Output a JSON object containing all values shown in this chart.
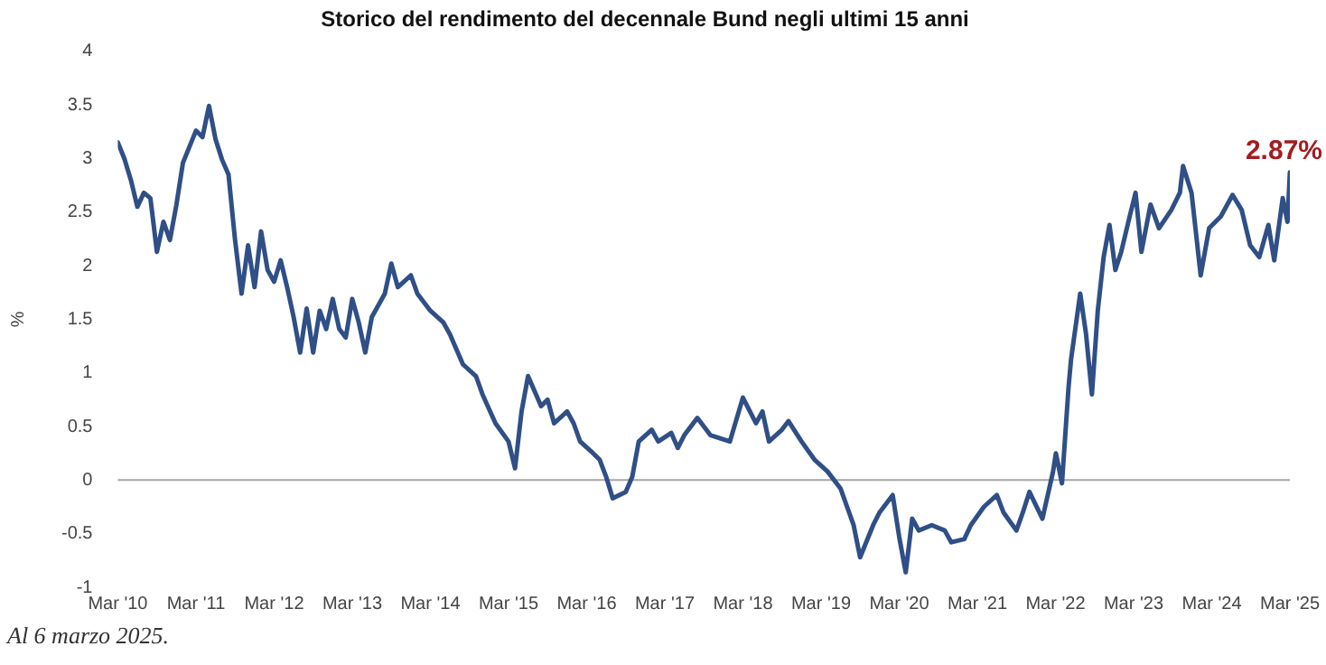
{
  "chart_data": {
    "type": "line",
    "title": "Storico del rendimento del decennale Bund negli ultimi 15 anni",
    "ylabel": "%",
    "x": [
      "2010-03",
      "2010-04",
      "2010-05",
      "2010-06",
      "2010-07",
      "2010-08",
      "2010-09",
      "2010-10",
      "2010-11",
      "2010-12",
      "2011-01",
      "2011-03",
      "2011-04",
      "2011-05",
      "2011-06",
      "2011-07",
      "2011-08",
      "2011-09",
      "2011-10",
      "2011-11",
      "2011-12",
      "2012-01",
      "2012-02",
      "2012-03",
      "2012-04",
      "2012-05",
      "2012-06",
      "2012-07",
      "2012-08",
      "2012-09",
      "2012-10",
      "2012-11",
      "2012-12",
      "2013-01",
      "2013-02",
      "2013-03",
      "2013-04",
      "2013-05",
      "2013-06",
      "2013-08",
      "2013-09",
      "2013-10",
      "2013-12",
      "2014-01",
      "2014-03",
      "2014-05",
      "2014-06",
      "2014-08",
      "2014-10",
      "2014-11",
      "2015-01",
      "2015-03",
      "2015-04",
      "2015-05",
      "2015-06",
      "2015-08",
      "2015-09",
      "2015-10",
      "2015-12",
      "2016-01",
      "2016-02",
      "2016-04",
      "2016-05",
      "2016-06",
      "2016-07",
      "2016-09",
      "2016-10",
      "2016-11",
      "2017-01",
      "2017-02",
      "2017-04",
      "2017-05",
      "2017-06",
      "2017-08",
      "2017-10",
      "2018-01",
      "2018-03",
      "2018-05",
      "2018-06",
      "2018-07",
      "2018-09",
      "2018-10",
      "2018-12",
      "2019-02",
      "2019-04",
      "2019-06",
      "2019-07",
      "2019-08",
      "2019-09",
      "2019-11",
      "2019-12",
      "2020-02",
      "2020-03",
      "2020-04",
      "2020-05",
      "2020-06",
      "2020-08",
      "2020-10",
      "2020-11",
      "2021-01",
      "2021-02",
      "2021-04",
      "2021-06",
      "2021-07",
      "2021-09",
      "2021-10",
      "2021-11",
      "2022-01",
      "2022-02-20",
      "2022-03-03",
      "2022-04-01",
      "2022-05-01",
      "2022-05-13",
      "2022-06-25",
      "2022-07-22",
      "2022-08-19",
      "2022-09-16",
      "2022-10-13",
      "2022-11-10",
      "2022-12-07",
      "2023-01-04",
      "2023-02-13",
      "2023-03-10",
      "2023-04-07",
      "2023-05-19",
      "2023-06-28",
      "2023-08-25",
      "2023-10-04",
      "2023-10-19",
      "2023-11-28",
      "2024-01-10",
      "2024-02-19",
      "2024-04-13",
      "2024-06-07",
      "2024-07-19",
      "2024-08-28",
      "2024-10-10",
      "2024-11-22",
      "2024-12-19",
      "2025-01-28",
      "2025-02-20",
      "2025-03"
    ],
    "series": [
      {
        "color": "#2f4f86",
        "values": [
          3.15,
          3.0,
          2.8,
          2.55,
          2.68,
          2.63,
          2.13,
          2.41,
          2.24,
          2.57,
          2.96,
          3.26,
          3.2,
          3.49,
          3.18,
          2.99,
          2.85,
          2.24,
          1.74,
          2.19,
          1.8,
          2.32,
          1.96,
          1.85,
          2.05,
          1.8,
          1.52,
          1.19,
          1.6,
          1.19,
          1.58,
          1.41,
          1.69,
          1.41,
          1.33,
          1.69,
          1.47,
          1.19,
          1.52,
          1.74,
          2.02,
          1.8,
          1.91,
          1.74,
          1.58,
          1.47,
          1.36,
          1.08,
          0.97,
          0.8,
          0.53,
          0.36,
          0.11,
          0.64,
          0.97,
          0.69,
          0.75,
          0.53,
          0.64,
          0.53,
          0.36,
          0.25,
          0.19,
          0.03,
          -0.17,
          -0.11,
          0.03,
          0.36,
          0.47,
          0.36,
          0.44,
          0.3,
          0.42,
          0.58,
          0.42,
          0.36,
          0.77,
          0.53,
          0.64,
          0.36,
          0.47,
          0.55,
          0.36,
          0.19,
          0.08,
          -0.08,
          -0.25,
          -0.42,
          -0.72,
          -0.42,
          -0.3,
          -0.14,
          -0.53,
          -0.86,
          -0.36,
          -0.47,
          -0.42,
          -0.47,
          -0.58,
          -0.55,
          -0.42,
          -0.25,
          -0.14,
          -0.3,
          -0.47,
          -0.3,
          -0.11,
          -0.36,
          0.08,
          0.25,
          -0.03,
          0.86,
          1.13,
          1.74,
          1.36,
          0.8,
          1.58,
          2.08,
          2.38,
          1.96,
          2.13,
          2.46,
          2.68,
          2.13,
          2.57,
          2.35,
          2.52,
          2.68,
          2.93,
          2.68,
          1.91,
          2.35,
          2.46,
          2.66,
          2.52,
          2.19,
          2.08,
          2.38,
          2.05,
          2.63,
          2.41,
          2.87
        ]
      }
    ],
    "xlim": [
      "2010-03",
      "2025-03"
    ],
    "xticks": [
      {
        "value": "2010-03",
        "label": "Mar '10"
      },
      {
        "value": "2011-03",
        "label": "Mar '11"
      },
      {
        "value": "2012-03",
        "label": "Mar '12"
      },
      {
        "value": "2013-03",
        "label": "Mar '13"
      },
      {
        "value": "2014-03",
        "label": "Mar '14"
      },
      {
        "value": "2015-03",
        "label": "Mar '15"
      },
      {
        "value": "2016-03",
        "label": "Mar '16"
      },
      {
        "value": "2017-03",
        "label": "Mar '17"
      },
      {
        "value": "2018-03",
        "label": "Mar '18"
      },
      {
        "value": "2019-03",
        "label": "Mar '19"
      },
      {
        "value": "2020-03",
        "label": "Mar '20"
      },
      {
        "value": "2021-03",
        "label": "Mar '21"
      },
      {
        "value": "2022-03",
        "label": "Mar '22"
      },
      {
        "value": "2023-03",
        "label": "Mar '23"
      },
      {
        "value": "2024-03",
        "label": "Mar '24"
      },
      {
        "value": "2025-03",
        "label": "Mar '25"
      }
    ],
    "ylim": [
      -1,
      4
    ],
    "yticks": [
      -1,
      -0.5,
      0,
      0.5,
      1,
      1.5,
      2,
      2.5,
      3,
      3.5,
      4
    ],
    "ref_lines": [
      {
        "axis": "y",
        "value": 0,
        "color": "#a6a6a6"
      }
    ],
    "grid": false,
    "legend": false,
    "marker": "none",
    "line_style": "solid",
    "annotations": [
      "2.87%",
      "Al 6 marzo 2025."
    ]
  }
}
